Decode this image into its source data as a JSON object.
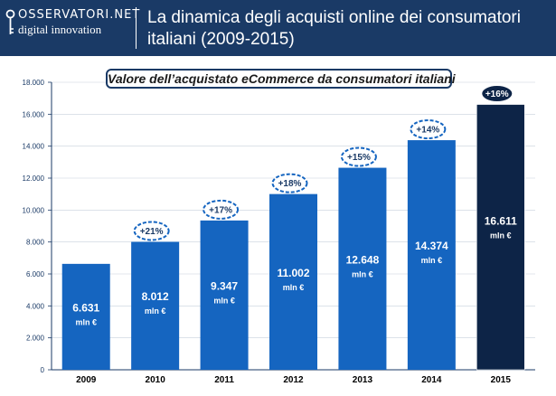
{
  "header": {
    "logo_top": "OSSERVATORI.NET",
    "logo_bottom": "digital innovation",
    "title": "La dinamica degli acquisti online dei consumatori italiani (2009-2015)"
  },
  "colors": {
    "header_bg": "#1a3a66",
    "bar": "#1565c0",
    "bar_highlight": "#0d2447",
    "growth_border": "#1565c0",
    "growth_text": "#1a3a66"
  },
  "chart_data": {
    "type": "bar",
    "title": "Valore dell’acquistato eCommerce da consumatori italiani",
    "categories": [
      "2009",
      "2010",
      "2011",
      "2012",
      "2013",
      "2014",
      "2015"
    ],
    "values": [
      6631,
      8012,
      9347,
      11002,
      12648,
      14374,
      16611
    ],
    "value_labels": [
      "6.631",
      "8.012",
      "9.347",
      "11.002",
      "12.648",
      "14.374",
      "16.611"
    ],
    "unit_label": "mln €",
    "growth_labels": [
      "",
      "+21%",
      "+17%",
      "+18%",
      "+15%",
      "+14%",
      "+16%"
    ],
    "ylim": [
      0,
      18000
    ],
    "yticks": [
      0,
      2000,
      4000,
      6000,
      8000,
      10000,
      12000,
      14000,
      16000,
      18000
    ],
    "ytick_labels": [
      "0",
      "2.000",
      "4.000",
      "6.000",
      "8.000",
      "10.000",
      "12.000",
      "14.000",
      "16.000",
      "18.000"
    ],
    "grid": true,
    "xlabel": "",
    "ylabel": ""
  }
}
